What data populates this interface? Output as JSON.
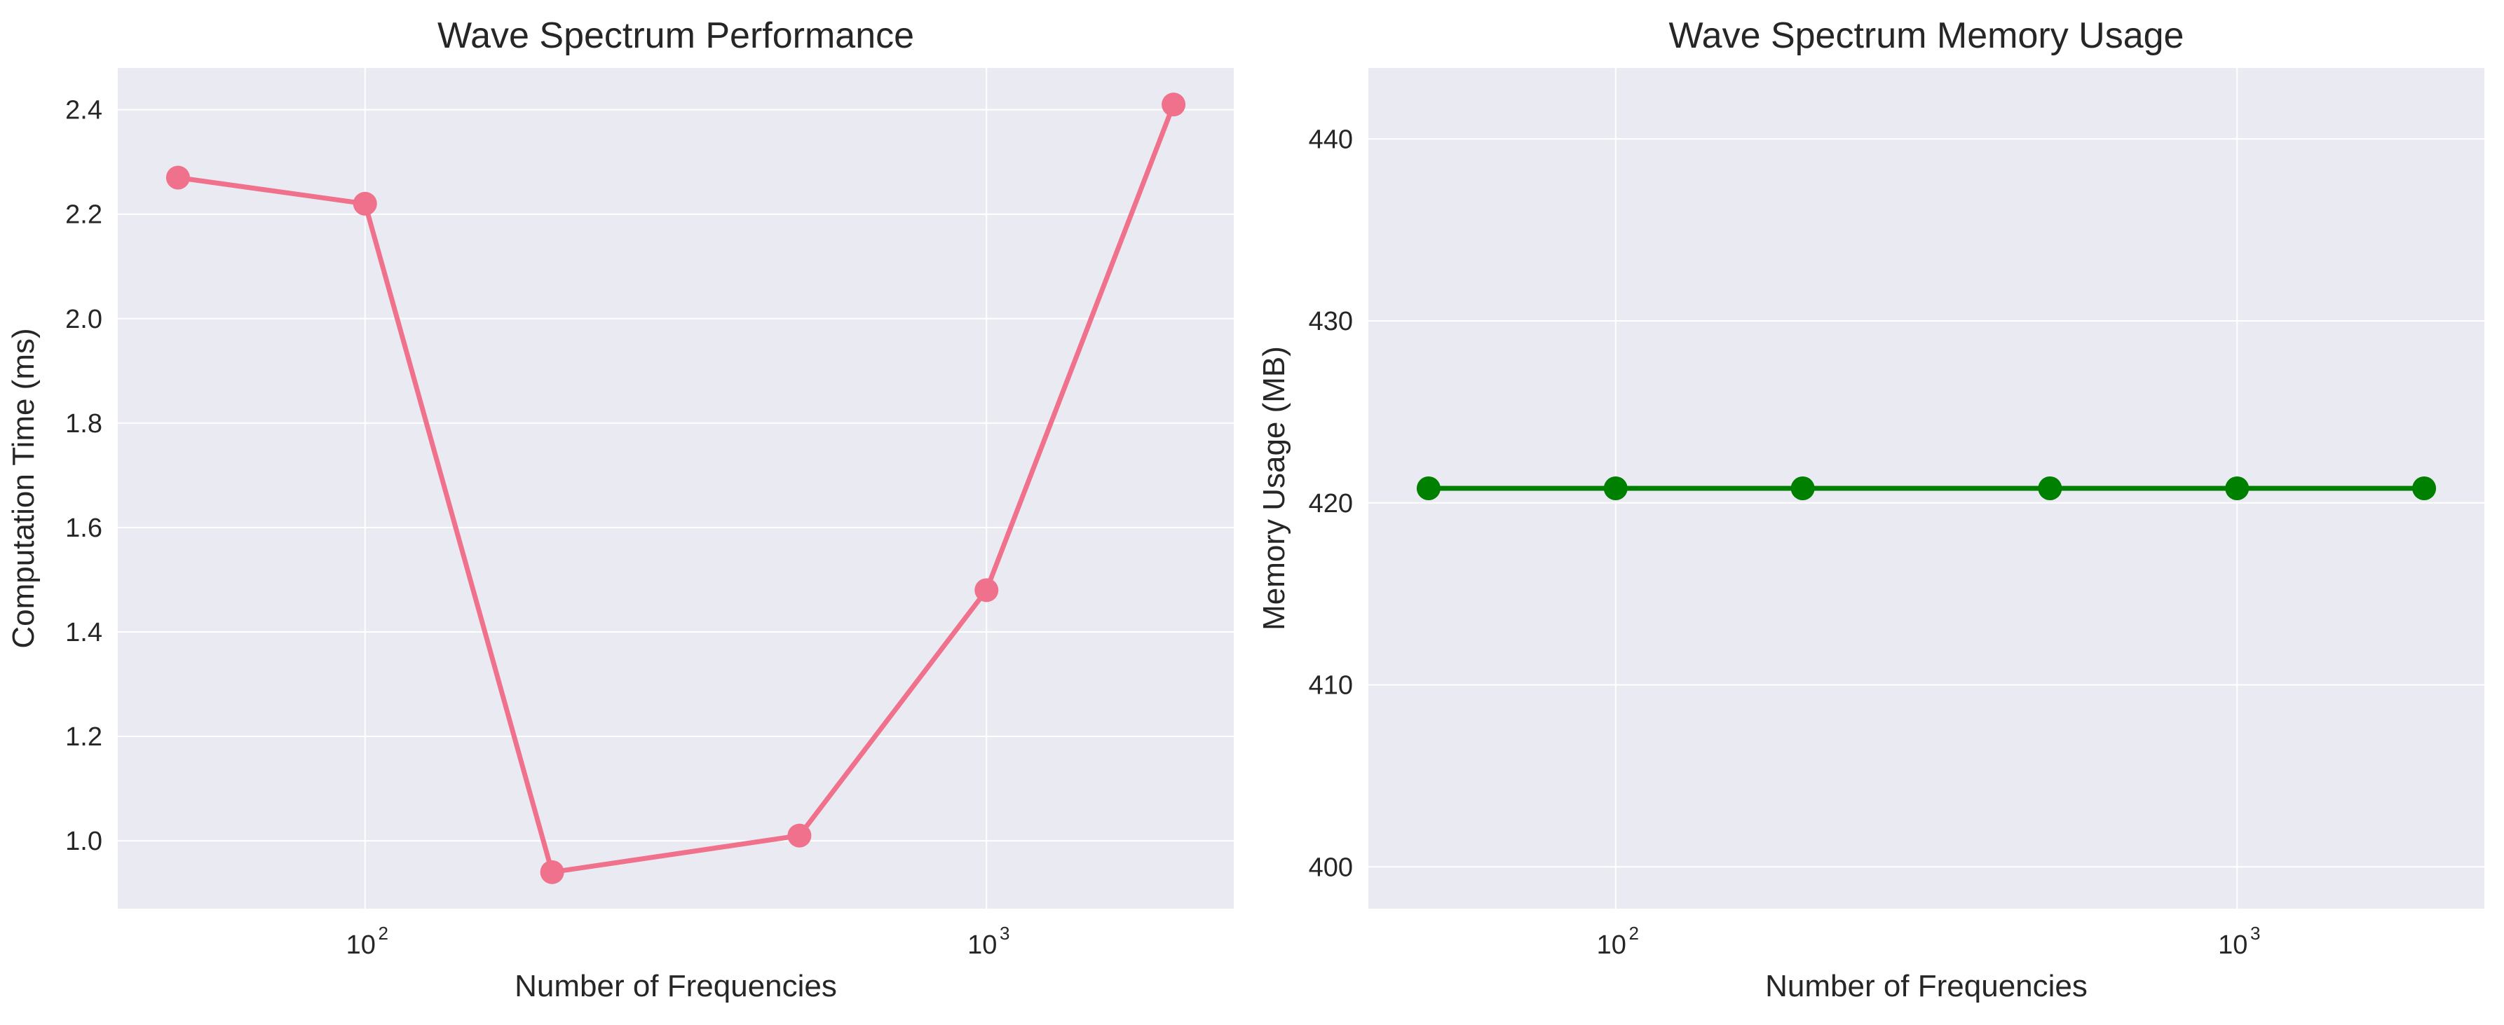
{
  "chart_data": [
    {
      "type": "line",
      "title": "Wave Spectrum Performance",
      "xlabel": "Number of Frequencies",
      "ylabel": "Computation Time (ms)",
      "x_scale": "log",
      "xlim": [
        40,
        2500
      ],
      "ylim": [
        0.87,
        2.48
      ],
      "x_ticks": [
        100,
        1000
      ],
      "x_tick_labels": [
        {
          "base": "10",
          "exp": "2"
        },
        {
          "base": "10",
          "exp": "3"
        }
      ],
      "y_ticks": [
        1.0,
        1.2,
        1.4,
        1.6,
        1.8,
        2.0,
        2.2,
        2.4
      ],
      "y_tick_labels": [
        "1.0",
        "1.2",
        "1.4",
        "1.6",
        "1.8",
        "2.0",
        "2.2",
        "2.4"
      ],
      "grid": true,
      "background": "#eaeaf2",
      "series": [
        {
          "color": "#f0718c",
          "x": [
            50,
            100,
            200,
            500,
            1000,
            2000
          ],
          "values": [
            2.27,
            2.22,
            0.94,
            1.01,
            1.48,
            2.41
          ]
        }
      ]
    },
    {
      "type": "line",
      "title": "Wave Spectrum Memory Usage",
      "xlabel": "Number of Frequencies",
      "ylabel": "Memory Usage (MB)",
      "x_scale": "log",
      "xlim": [
        40,
        2500
      ],
      "ylim": [
        397.7,
        443.9
      ],
      "x_ticks": [
        100,
        1000
      ],
      "x_tick_labels": [
        {
          "base": "10",
          "exp": "2"
        },
        {
          "base": "10",
          "exp": "3"
        }
      ],
      "y_ticks": [
        400,
        410,
        420,
        430,
        440
      ],
      "y_tick_labels": [
        "400",
        "410",
        "420",
        "430",
        "440"
      ],
      "grid": true,
      "background": "#eaeaf2",
      "series": [
        {
          "color": "#008000",
          "x": [
            50,
            100,
            200,
            500,
            1000,
            2000
          ],
          "values": [
            420.8,
            420.8,
            420.8,
            420.8,
            420.8,
            420.8
          ]
        }
      ]
    }
  ]
}
